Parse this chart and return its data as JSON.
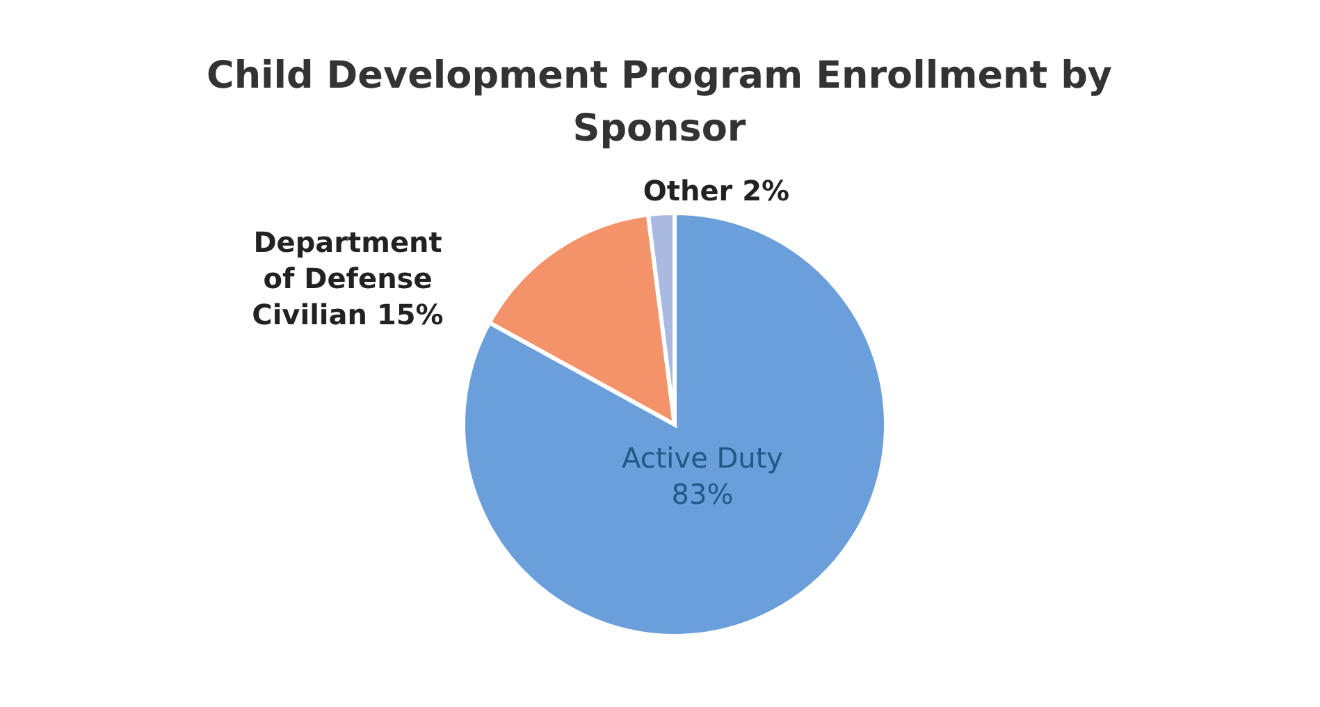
{
  "chart_data": {
    "type": "pie",
    "title": "Child Development Program Enrollment by Sponsor",
    "categories": [
      "Active Duty",
      "Department of Defense Civilian",
      "Other"
    ],
    "values": [
      83,
      15,
      2
    ],
    "colors": [
      "#6a9fdc",
      "#f4926a",
      "#a9b9e2"
    ],
    "value_labels": [
      "83%",
      "15%",
      "2%"
    ]
  }
}
